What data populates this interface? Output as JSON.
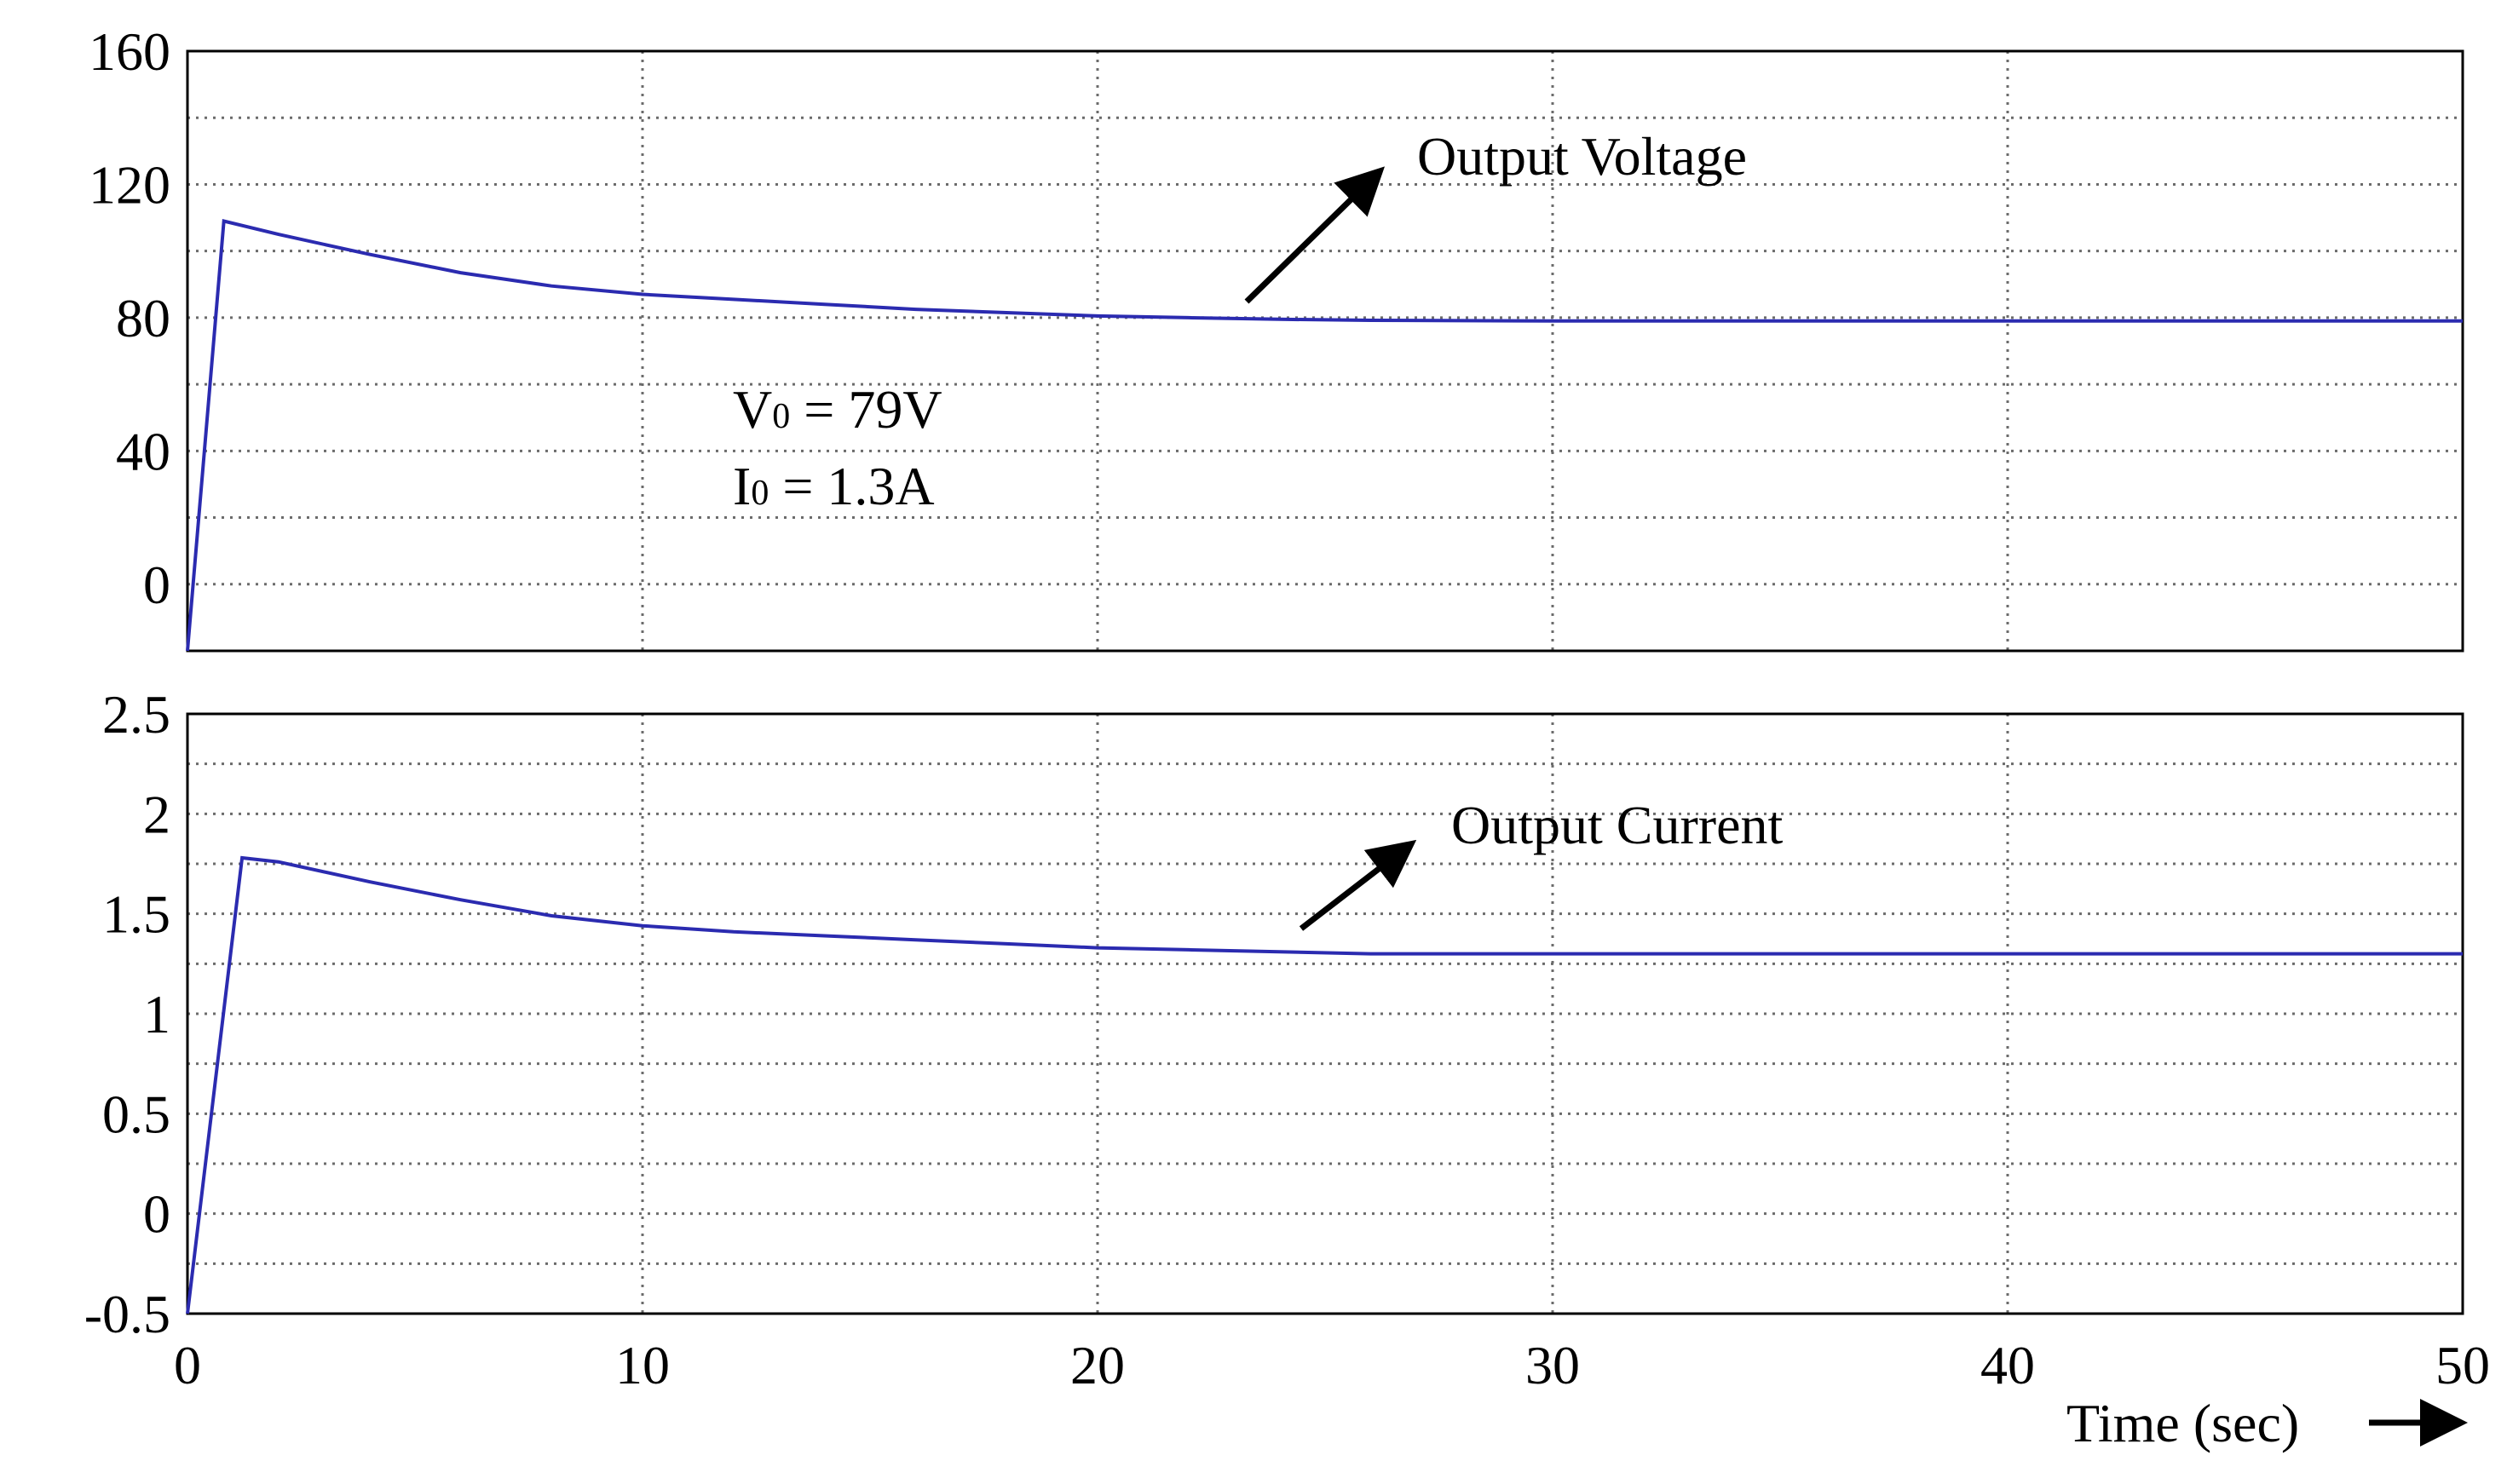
{
  "chart_data": [
    {
      "type": "line",
      "title": "",
      "xlabel": "",
      "ylabel": "",
      "xlim": [
        0,
        50
      ],
      "ylim": [
        -20,
        160
      ],
      "grid": true,
      "x_ticks": [
        0,
        10,
        20,
        30,
        40,
        50
      ],
      "y_ticks": [
        0,
        40,
        80,
        120,
        160
      ],
      "y_tick_labels": [
        "0",
        "40",
        "80",
        "120",
        "160"
      ],
      "series": [
        {
          "name": "Output Voltage",
          "color": "#2b2bb0",
          "x": [
            0,
            0.8,
            2,
            4,
            6,
            8,
            10,
            12,
            14,
            16,
            18,
            20,
            22,
            24,
            26,
            30,
            35,
            40,
            45,
            50
          ],
          "y": [
            -20,
            109,
            105,
            99,
            93.5,
            89.5,
            87,
            85.5,
            84,
            82.5,
            81.5,
            80.5,
            80,
            79.5,
            79.2,
            79,
            79,
            79,
            79,
            79
          ]
        }
      ],
      "annotations": [
        {
          "text": "Output Voltage",
          "arrow": true
        },
        {
          "text": "V₀ = 79V",
          "main": "V",
          "sub": "0",
          "rest": " = 79V"
        },
        {
          "text": "I₀ = 1.3A",
          "main": "I",
          "sub": "0",
          "rest": " = 1.3A"
        }
      ]
    },
    {
      "type": "line",
      "title": "",
      "xlabel": "Time (sec)",
      "ylabel": "",
      "xlim": [
        0,
        50
      ],
      "ylim": [
        -0.5,
        2.5
      ],
      "grid": true,
      "x_ticks": [
        0,
        10,
        20,
        30,
        40,
        50
      ],
      "x_tick_labels": [
        "0",
        "10",
        "20",
        "30",
        "40",
        "50"
      ],
      "y_ticks": [
        -0.5,
        0,
        0.5,
        1,
        1.5,
        2,
        2.5
      ],
      "y_tick_labels": [
        "-0.5",
        "0",
        "0.5",
        "1",
        "1.5",
        "2",
        "2.5"
      ],
      "series": [
        {
          "name": "Output Current",
          "color": "#2b2bb0",
          "x": [
            0,
            1.2,
            2,
            4,
            6,
            8,
            10,
            12,
            14,
            16,
            18,
            20,
            22,
            24,
            26,
            30,
            35,
            40,
            45,
            50
          ],
          "y": [
            -0.5,
            1.78,
            1.76,
            1.66,
            1.57,
            1.49,
            1.44,
            1.41,
            1.39,
            1.37,
            1.35,
            1.33,
            1.32,
            1.31,
            1.3,
            1.3,
            1.3,
            1.3,
            1.3,
            1.3
          ]
        }
      ],
      "annotations": [
        {
          "text": "Output Current",
          "arrow": true
        }
      ]
    }
  ]
}
